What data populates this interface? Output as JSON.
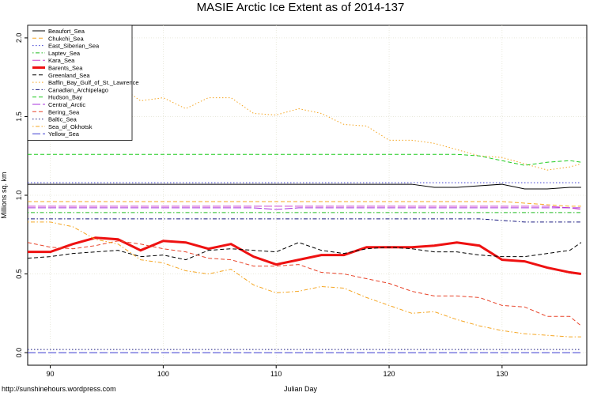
{
  "chart_data": {
    "type": "line",
    "title": "MASIE Arctic Ice Extent as of 2014-137",
    "x_label": "Julian Day",
    "y_label": "Millions sq. km",
    "source": "http://sunshinehours.wordpress.com",
    "legend": "upper left",
    "grid": true,
    "xlim": [
      88,
      137.5
    ],
    "ylim": [
      -0.08,
      2.08
    ],
    "xticks": [
      90,
      100,
      110,
      120,
      130
    ],
    "yticks": [
      {
        "value": 0,
        "label": "0.0"
      },
      {
        "value": 0.5,
        "label": "0.5"
      },
      {
        "value": 1,
        "label": "1.0"
      },
      {
        "value": 1.5,
        "label": "1.5"
      },
      {
        "value": 2,
        "label": "2.0"
      }
    ],
    "x": [
      88,
      90,
      92,
      94,
      96,
      98,
      100,
      102,
      104,
      106,
      108,
      110,
      112,
      114,
      116,
      118,
      120,
      122,
      124,
      126,
      128,
      130,
      132,
      134,
      136,
      137
    ],
    "series": [
      {
        "name": "Beaufort_Sea",
        "color": "#000000",
        "style": "solid",
        "width": 1,
        "values": [
          1.07,
          1.07,
          1.07,
          1.07,
          1.07,
          1.07,
          1.07,
          1.07,
          1.07,
          1.07,
          1.07,
          1.07,
          1.07,
          1.07,
          1.07,
          1.07,
          1.07,
          1.07,
          1.05,
          1.05,
          1.06,
          1.07,
          1.04,
          1.04,
          1.05,
          1.05
        ]
      },
      {
        "name": "Chukchi_Sea",
        "color": "#f5a623",
        "style": "dashed",
        "width": 1,
        "values": [
          0.96,
          0.96,
          0.96,
          0.96,
          0.96,
          0.96,
          0.96,
          0.96,
          0.96,
          0.96,
          0.96,
          0.96,
          0.96,
          0.96,
          0.96,
          0.96,
          0.96,
          0.96,
          0.96,
          0.96,
          0.96,
          0.96,
          0.95,
          0.94,
          0.93,
          0.93
        ]
      },
      {
        "name": "East_Siberian_Sea",
        "color": "#3b3bd1",
        "style": "dotted",
        "width": 1,
        "values": [
          1.08,
          1.08,
          1.08,
          1.08,
          1.08,
          1.08,
          1.08,
          1.08,
          1.08,
          1.08,
          1.08,
          1.08,
          1.08,
          1.08,
          1.08,
          1.08,
          1.08,
          1.08,
          1.08,
          1.08,
          1.08,
          1.08,
          1.08,
          1.08,
          1.08,
          1.08
        ]
      },
      {
        "name": "Laptev_Sea",
        "color": "#22bb22",
        "style": "dotdash",
        "width": 1,
        "values": [
          0.89,
          0.89,
          0.89,
          0.89,
          0.89,
          0.89,
          0.89,
          0.89,
          0.89,
          0.89,
          0.89,
          0.89,
          0.89,
          0.89,
          0.89,
          0.89,
          0.89,
          0.89,
          0.89,
          0.89,
          0.89,
          0.89,
          0.89,
          0.89,
          0.89,
          0.89
        ]
      },
      {
        "name": "Kara_Sea",
        "color": "#cc44cc",
        "style": "longdash",
        "width": 1,
        "values": [
          0.93,
          0.93,
          0.93,
          0.93,
          0.93,
          0.93,
          0.93,
          0.93,
          0.93,
          0.93,
          0.93,
          0.93,
          0.93,
          0.93,
          0.93,
          0.93,
          0.93,
          0.93,
          0.93,
          0.93,
          0.93,
          0.93,
          0.93,
          0.93,
          0.92,
          0.91
        ]
      },
      {
        "name": "Barents_Sea",
        "color": "#ee1111",
        "style": "solid",
        "width": 3,
        "values": [
          0.64,
          0.64,
          0.69,
          0.73,
          0.72,
          0.65,
          0.71,
          0.7,
          0.66,
          0.69,
          0.61,
          0.56,
          0.59,
          0.62,
          0.62,
          0.67,
          0.67,
          0.67,
          0.68,
          0.7,
          0.68,
          0.59,
          0.58,
          0.54,
          0.51,
          0.5
        ]
      },
      {
        "name": "Greenland_Sea",
        "color": "#000000",
        "style": "dashed",
        "width": 1,
        "values": [
          0.6,
          0.61,
          0.63,
          0.64,
          0.65,
          0.61,
          0.62,
          0.59,
          0.65,
          0.66,
          0.65,
          0.64,
          0.7,
          0.65,
          0.63,
          0.66,
          0.67,
          0.66,
          0.64,
          0.64,
          0.62,
          0.61,
          0.61,
          0.63,
          0.65,
          0.7
        ]
      },
      {
        "name": "Baffin_Bay_Gulf_of_St._Lawrence",
        "color": "#f5a623",
        "style": "dotted",
        "width": 1,
        "values": [
          1.78,
          1.76,
          1.74,
          1.72,
          1.7,
          1.6,
          1.62,
          1.55,
          1.62,
          1.62,
          1.52,
          1.51,
          1.55,
          1.52,
          1.45,
          1.44,
          1.35,
          1.35,
          1.33,
          1.29,
          1.25,
          1.24,
          1.2,
          1.16,
          1.18,
          1.2
        ]
      },
      {
        "name": "Canadian_Archipelago",
        "color": "#1a1a80",
        "style": "dotdash",
        "width": 1,
        "values": [
          0.85,
          0.85,
          0.85,
          0.85,
          0.85,
          0.85,
          0.85,
          0.85,
          0.85,
          0.85,
          0.85,
          0.85,
          0.85,
          0.85,
          0.85,
          0.85,
          0.85,
          0.85,
          0.85,
          0.85,
          0.85,
          0.84,
          0.83,
          0.83,
          0.83,
          0.83
        ]
      },
      {
        "name": "Hudson_Bay",
        "color": "#22cc22",
        "style": "dashed",
        "width": 1,
        "values": [
          1.26,
          1.26,
          1.26,
          1.26,
          1.26,
          1.26,
          1.26,
          1.26,
          1.26,
          1.26,
          1.26,
          1.26,
          1.26,
          1.26,
          1.26,
          1.26,
          1.26,
          1.26,
          1.26,
          1.26,
          1.25,
          1.22,
          1.19,
          1.21,
          1.22,
          1.21
        ]
      },
      {
        "name": "Central_Arctic",
        "color": "#aa33dd",
        "style": "longdash",
        "width": 1,
        "values": [
          0.92,
          0.92,
          0.92,
          0.92,
          0.92,
          0.92,
          0.92,
          0.92,
          0.92,
          0.92,
          0.92,
          0.91,
          0.92,
          0.92,
          0.92,
          0.92,
          0.92,
          0.92,
          0.92,
          0.92,
          0.92,
          0.92,
          0.92,
          0.92,
          0.92,
          0.92
        ]
      },
      {
        "name": "Bering_Sea",
        "color": "#e8442a",
        "style": "dashed",
        "width": 1,
        "values": [
          0.7,
          0.67,
          0.66,
          0.68,
          0.71,
          0.69,
          0.66,
          0.64,
          0.6,
          0.59,
          0.55,
          0.55,
          0.56,
          0.51,
          0.5,
          0.47,
          0.44,
          0.39,
          0.36,
          0.36,
          0.35,
          0.3,
          0.29,
          0.23,
          0.23,
          0.17
        ]
      },
      {
        "name": "Baltic_Sea",
        "color": "#1a1a80",
        "style": "dotted",
        "width": 1,
        "values": [
          0.02,
          0.02,
          0.02,
          0.02,
          0.02,
          0.02,
          0.02,
          0.02,
          0.02,
          0.02,
          0.02,
          0.02,
          0.02,
          0.02,
          0.02,
          0.02,
          0.02,
          0.02,
          0.02,
          0.02,
          0.02,
          0.02,
          0.02,
          0.02,
          0.02,
          0.02
        ]
      },
      {
        "name": "Sea_of_Okhotsk",
        "color": "#f5a623",
        "style": "dotdash",
        "width": 1,
        "values": [
          0.83,
          0.83,
          0.8,
          0.72,
          0.69,
          0.59,
          0.57,
          0.52,
          0.5,
          0.53,
          0.43,
          0.38,
          0.39,
          0.42,
          0.41,
          0.35,
          0.3,
          0.25,
          0.26,
          0.21,
          0.17,
          0.14,
          0.12,
          0.11,
          0.1,
          0.1
        ]
      },
      {
        "name": "Yellow_Sea",
        "color": "#3b3bd1",
        "style": "longdash",
        "width": 1,
        "values": [
          0,
          0,
          0,
          0,
          0,
          0,
          0,
          0,
          0,
          0,
          0,
          0,
          0,
          0,
          0,
          0,
          0,
          0,
          0,
          0,
          0,
          0,
          0,
          0,
          0,
          0
        ]
      }
    ]
  }
}
